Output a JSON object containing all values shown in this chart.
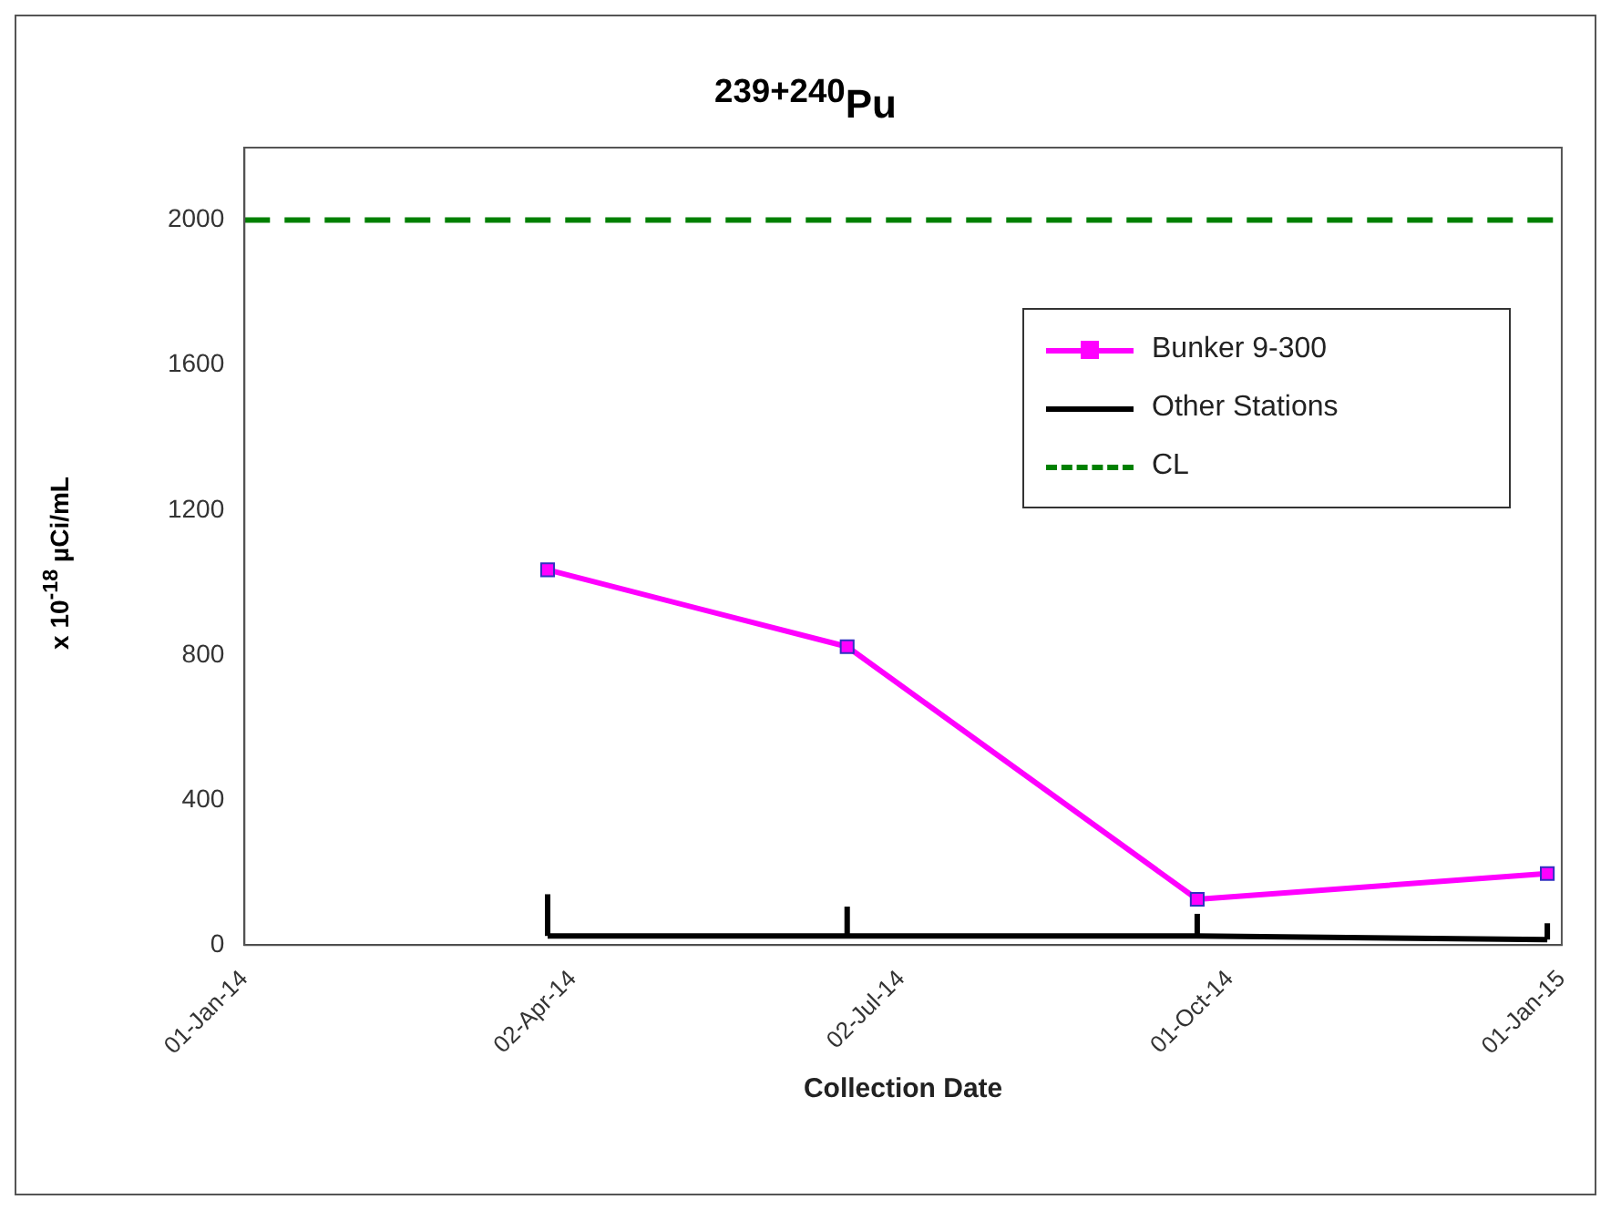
{
  "chart_data": {
    "type": "line",
    "title": "$^{239+240}$Pu",
    "xlabel": "Collection Date",
    "ylabel": "x 10$^{-18}$ µCi/mL",
    "xlim": [
      "2014-01-01",
      "2015-01-01"
    ],
    "xticks": [
      {
        "value": "2014-01-01",
        "label": "01-Jan-14"
      },
      {
        "value": "2014-04-02",
        "label": "02-Apr-14"
      },
      {
        "value": "2014-07-02",
        "label": "02-Jul-14"
      },
      {
        "value": "2014-10-01",
        "label": "01-Oct-14"
      },
      {
        "value": "2015-01-01",
        "label": "01-Jan-15"
      }
    ],
    "ylim": [
      0,
      2200
    ],
    "yticks": [
      0,
      400,
      800,
      1200,
      1600,
      2000
    ],
    "series": [
      {
        "name": "Bunker 9-300",
        "color": "#ff00ff",
        "marker": "square",
        "x": [
          "2014-03-26",
          "2014-06-17",
          "2014-09-22",
          "2014-12-28"
        ],
        "values": [
          1035,
          823,
          126,
          197
        ]
      },
      {
        "name": "Other Stations",
        "color": "#000000",
        "marker": "none",
        "x": [
          "2014-03-26",
          "2014-06-17",
          "2014-09-22",
          "2014-12-28"
        ],
        "values": [
          25,
          25,
          25,
          15
        ],
        "errors": [
          [
            25,
            140
          ],
          [
            25,
            106
          ],
          [
            25,
            86
          ],
          [
            15,
            60
          ]
        ]
      }
    ],
    "ref_lines": [
      {
        "axis": "y",
        "value": 2000,
        "label": "CL",
        "color": "#008000",
        "line_style": "dashed"
      }
    ],
    "grid": false,
    "legend": "top right",
    "line_style": "solid"
  }
}
